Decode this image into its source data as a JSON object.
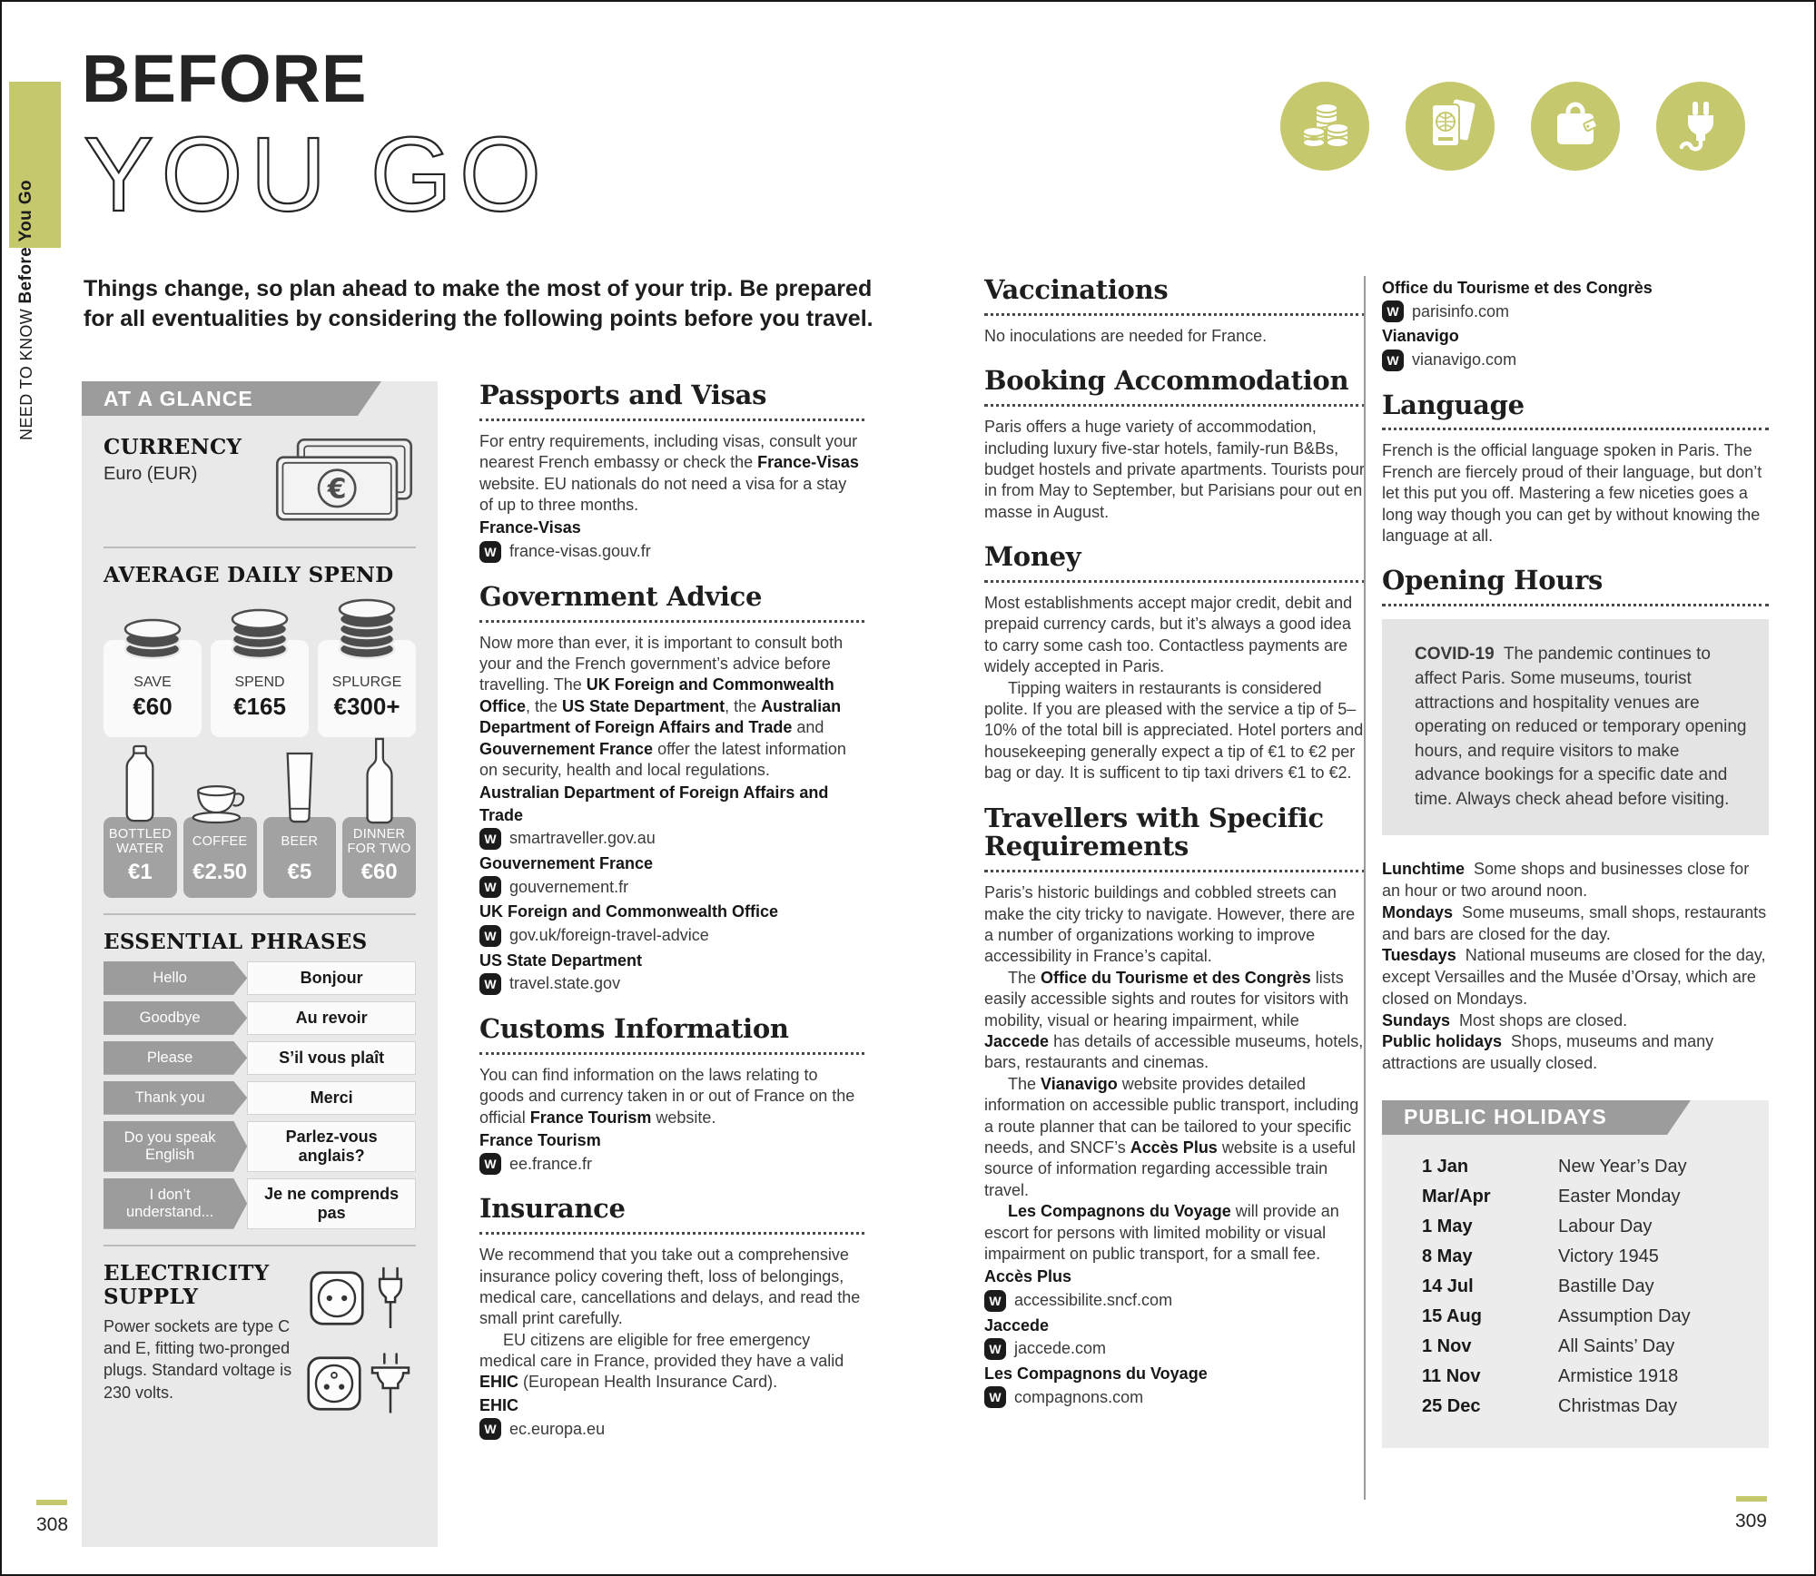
{
  "page": {
    "side_tab": {
      "small": "NEED TO KNOW ",
      "bold": "Before You Go"
    },
    "title_line1": "BEFORE",
    "title_line2": "YOU GO",
    "intro": "Things change, so plan ahead to make the most of your trip. Be prepared for all eventualities by considering the following points before you travel.",
    "header_icons": [
      "coins-icon",
      "passport-icon",
      "shopping-bag-icon",
      "plug-icon"
    ],
    "page_number_left": "308",
    "page_number_right": "309",
    "colors": {
      "accent_olive": "#c5c86c",
      "panel_gray": "#e9e9e9",
      "banner_gray": "#9c9c9c",
      "card_gray": "#a2a2a2"
    }
  },
  "at_a_glance": {
    "header": "AT A GLANCE",
    "currency": {
      "label": "CURRENCY",
      "value": "Euro (EUR)",
      "icon": "euro-banknote-icon"
    },
    "daily_spend": {
      "label": "AVERAGE DAILY SPEND",
      "items": [
        {
          "tier": "SAVE",
          "amount": "€60",
          "coins": 3
        },
        {
          "tier": "SPEND",
          "amount": "€165",
          "coins": 4
        },
        {
          "tier": "SPLURGE",
          "amount": "€300+",
          "coins": 5
        }
      ]
    },
    "price_items": [
      {
        "label": "BOTTLED WATER",
        "amount": "€1",
        "icon": "water-bottle-icon"
      },
      {
        "label": "COFFEE",
        "amount": "€2.50",
        "icon": "coffee-cup-icon"
      },
      {
        "label": "BEER",
        "amount": "€5",
        "icon": "beer-glass-icon"
      },
      {
        "label": "DINNER FOR TWO",
        "amount": "€60",
        "icon": "wine-bottle-icon"
      }
    ],
    "phrases": {
      "label": "ESSENTIAL PHRASES",
      "items": [
        {
          "en": "Hello",
          "fr": "Bonjour"
        },
        {
          "en": "Goodbye",
          "fr": "Au revoir"
        },
        {
          "en": "Please",
          "fr": "S’il vous plaît"
        },
        {
          "en": "Thank you",
          "fr": "Merci"
        },
        {
          "en": "Do you speak English",
          "fr": "Parlez-vous anglais?"
        },
        {
          "en": "I don’t understand...",
          "fr": "Je ne comprends pas"
        }
      ]
    },
    "electricity": {
      "label": "ELECTRICITY SUPPLY",
      "text": "Power sockets are type C and E, fitting two-pronged plugs. Standard voltage is 230 volts.",
      "icons": [
        "socket-type-c-icon",
        "plug-type-c-icon",
        "socket-type-e-icon",
        "plug-type-e-icon"
      ]
    }
  },
  "columns": {
    "col2": {
      "sections": [
        {
          "heading": "Passports and Visas",
          "paragraphs": [
            {
              "indent": false,
              "segments": [
                {
                  "t": "For entry requirements, including visas, consult your nearest French embassy or check the "
                },
                {
                  "t": "France-Visas",
                  "b": true
                },
                {
                  "t": " website. EU nationals do not need a visa for a stay of up to three months."
                }
              ]
            }
          ],
          "links": [
            {
              "name": "France-Visas",
              "url": "france-visas.gouv.fr"
            }
          ]
        },
        {
          "heading": "Government Advice",
          "paragraphs": [
            {
              "indent": false,
              "segments": [
                {
                  "t": "Now more than ever, it is important to consult both your and the French government’s advice before travelling. The "
                },
                {
                  "t": "UK Foreign and Commonwealth Office",
                  "b": true
                },
                {
                  "t": ", the "
                },
                {
                  "t": "US State Department",
                  "b": true
                },
                {
                  "t": ", the "
                },
                {
                  "t": "Australian Department of Foreign Affairs and Trade",
                  "b": true
                },
                {
                  "t": " and "
                },
                {
                  "t": "Gouvernement France",
                  "b": true
                },
                {
                  "t": " offer the latest information on security, health and local regulations."
                }
              ]
            }
          ],
          "links": [
            {
              "name": "Australian Department of Foreign Affairs and Trade",
              "url": "smartraveller.gov.au"
            },
            {
              "name": "Gouvernement France",
              "url": "gouvernement.fr"
            },
            {
              "name": "UK Foreign and Commonwealth Office",
              "url": "gov.uk/foreign-travel-advice"
            },
            {
              "name": "US State Department",
              "url": "travel.state.gov"
            }
          ]
        },
        {
          "heading": "Customs Information",
          "paragraphs": [
            {
              "indent": false,
              "segments": [
                {
                  "t": "You can find information on the laws relating to goods and currency taken in or out of France on the official "
                },
                {
                  "t": "France Tourism",
                  "b": true
                },
                {
                  "t": " website."
                }
              ]
            }
          ],
          "links": [
            {
              "name": "France Tourism",
              "url": "ee.france.fr"
            }
          ]
        },
        {
          "heading": "Insurance",
          "paragraphs": [
            {
              "indent": false,
              "segments": [
                {
                  "t": "We recommend that you take out a comprehensive insurance policy covering theft, loss of belongings, medical care, cancellations and delays, and read the small print carefully."
                }
              ]
            },
            {
              "indent": true,
              "segments": [
                {
                  "t": "EU citizens are eligible for free emergency medical care in France, provided they have a valid "
                },
                {
                  "t": "EHIC",
                  "b": true
                },
                {
                  "t": " (European Health Insurance Card)."
                }
              ]
            }
          ],
          "links": [
            {
              "name": "EHIC",
              "url": "ec.europa.eu"
            }
          ]
        }
      ]
    },
    "col3": {
      "sections": [
        {
          "heading": "Vaccinations",
          "paragraphs": [
            {
              "indent": false,
              "segments": [
                {
                  "t": "No inoculations are needed for France."
                }
              ]
            }
          ],
          "links": []
        },
        {
          "heading": "Booking Accommodation",
          "paragraphs": [
            {
              "indent": false,
              "segments": [
                {
                  "t": "Paris offers a huge variety of accommodation, including luxury five-star hotels, family-run B&Bs, budget hostels and private apartments. Tourists pour in from May to September, but Parisians pour out en masse in August."
                }
              ]
            }
          ],
          "links": []
        },
        {
          "heading": "Money",
          "paragraphs": [
            {
              "indent": false,
              "segments": [
                {
                  "t": "Most establishments accept major credit, debit and prepaid currency cards, but it’s always a good idea to carry some cash too. Contactless payments are widely accepted in Paris."
                }
              ]
            },
            {
              "indent": true,
              "segments": [
                {
                  "t": "Tipping waiters in restaurants is considered polite. If you are pleased with the service a tip of 5–10% of the total bill is appreciated. Hotel porters and housekeeping generally expect a tip of €1 to €2 per bag or day. It is sufficent to tip taxi drivers €1 to €2."
                }
              ]
            }
          ],
          "links": []
        },
        {
          "heading": "Travellers with Specific Requirements",
          "paragraphs": [
            {
              "indent": false,
              "segments": [
                {
                  "t": "Paris’s historic buildings and cobbled streets can make the city tricky to navigate. However, there are a number of organizations working to improve accessibility in France’s capital."
                }
              ]
            },
            {
              "indent": true,
              "segments": [
                {
                  "t": "The "
                },
                {
                  "t": "Office du Tourisme et des Congrès",
                  "b": true
                },
                {
                  "t": " lists easily accessible sights and routes for visitors with mobility, visual or hearing impairment, while "
                },
                {
                  "t": "Jaccede",
                  "b": true
                },
                {
                  "t": " has details of accessible museums, hotels, bars, restaurants and cinemas."
                }
              ]
            },
            {
              "indent": true,
              "segments": [
                {
                  "t": "The "
                },
                {
                  "t": "Vianavigo",
                  "b": true
                },
                {
                  "t": " website provides detailed information on accessible public transport, including a route planner that can be tailored to your specific needs, and SNCF’s "
                },
                {
                  "t": "Accès Plus",
                  "b": true
                },
                {
                  "t": " website is a useful source of information regarding accessible train travel."
                }
              ]
            },
            {
              "indent": true,
              "segments": [
                {
                  "t": "Les Compagnons du Voyage",
                  "b": true
                },
                {
                  "t": " will provide an escort for persons with limited mobility or visual impairment on public transport, for a small fee."
                }
              ]
            }
          ],
          "links": [
            {
              "name": "Accès Plus",
              "url": "accessibilite.sncf.com"
            },
            {
              "name": "Jaccede",
              "url": "jaccede.com"
            },
            {
              "name": "Les Compagnons du Voyage",
              "url": "compagnons.com"
            }
          ]
        }
      ]
    },
    "col4": {
      "top_links": [
        {
          "name": "Office du Tourisme et des Congrès",
          "url": "parisinfo.com"
        },
        {
          "name": "Vianavigo",
          "url": "vianavigo.com"
        }
      ],
      "language": {
        "heading": "Language",
        "text": "French is the official language spoken in Paris. The French are fiercely proud of their language, but don’t let this put you off. Mastering a few niceties goes a long way though you can get by without knowing the language at all."
      },
      "opening_hours": {
        "heading": "Opening Hours",
        "covid": {
          "label": "COVID-19",
          "text": "The pandemic continues to affect Paris. Some museums, tourist attractions and hospitality venues are operating on reduced or temporary opening hours, and require visitors to make advance bookings for a specific date and time. Always check ahead before visiting."
        },
        "schedule": [
          {
            "term": "Lunchtime",
            "text": "Some shops and businesses close for an hour or two around noon."
          },
          {
            "term": "Mondays",
            "text": "Some museums, small shops, restaurants and bars are closed for the day."
          },
          {
            "term": "Tuesdays",
            "text": "National museums are closed for the day, except Versailles and the Musée d’Orsay, which are closed on Mondays."
          },
          {
            "term": "Sundays",
            "text": "Most shops are closed."
          },
          {
            "term": "Public holidays",
            "text": "Shops, museums and many attractions are usually closed."
          }
        ]
      },
      "public_holidays": {
        "header": "PUBLIC HOLIDAYS",
        "rows": [
          {
            "date": "1 Jan",
            "name": "New Year’s Day"
          },
          {
            "date": "Mar/Apr",
            "name": "Easter Monday"
          },
          {
            "date": "1 May",
            "name": "Labour Day"
          },
          {
            "date": "8 May",
            "name": "Victory 1945"
          },
          {
            "date": "14 Jul",
            "name": "Bastille Day"
          },
          {
            "date": "15 Aug",
            "name": "Assumption Day"
          },
          {
            "date": "1 Nov",
            "name": "All Saints’ Day"
          },
          {
            "date": "11 Nov",
            "name": "Armistice 1918"
          },
          {
            "date": "25 Dec",
            "name": "Christmas Day"
          }
        ]
      }
    }
  }
}
